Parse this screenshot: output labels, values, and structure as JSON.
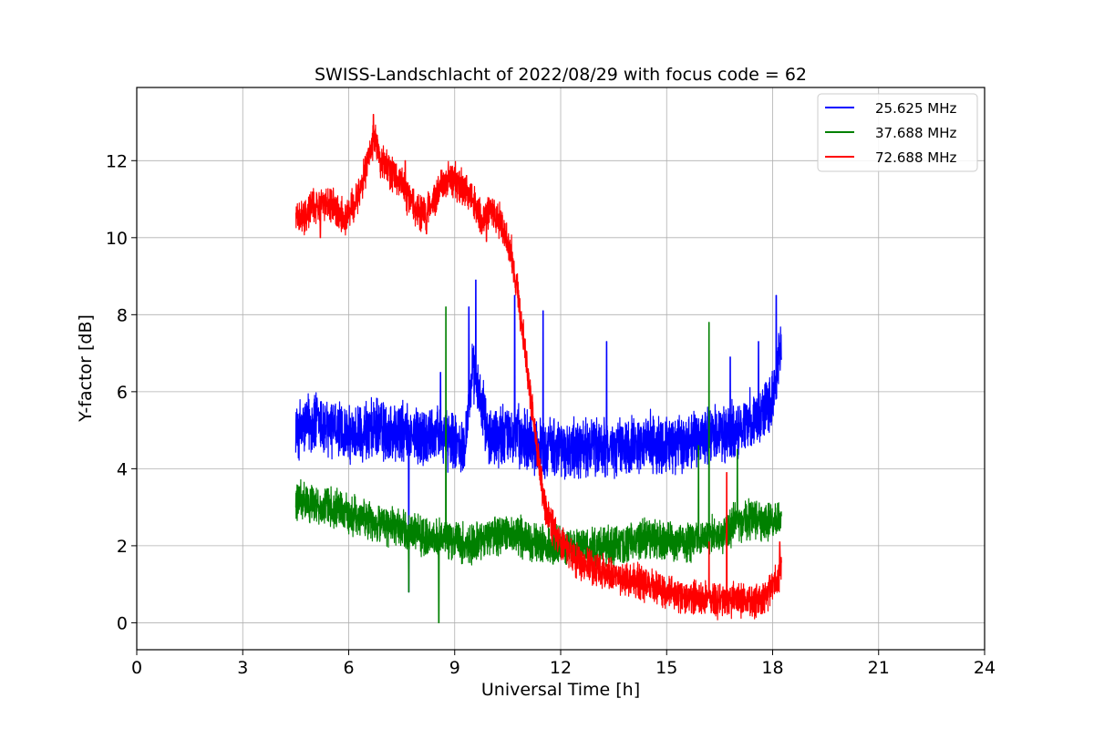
{
  "chart_data": {
    "type": "line",
    "title": "SWISS-Landschlacht of 2022/08/29 with focus code = 62",
    "xlabel": "Universal Time [h]",
    "ylabel": "Y-factor [dB]",
    "xlim": [
      0,
      24
    ],
    "ylim": [
      -0.7,
      13.9
    ],
    "xticks": [
      0,
      3,
      6,
      9,
      12,
      15,
      18,
      21,
      24
    ],
    "yticks": [
      0,
      2,
      4,
      6,
      8,
      10,
      12
    ],
    "grid": true,
    "legend_position": "top-right",
    "series": [
      {
        "name": "25.625 MHz",
        "color": "#0000ff",
        "x": [
          4.5,
          5.0,
          5.5,
          6.0,
          6.5,
          7.0,
          7.5,
          8.0,
          8.5,
          9.0,
          9.3,
          9.5,
          10.0,
          10.5,
          11.0,
          11.5,
          12.0,
          12.5,
          13.0,
          13.5,
          14.0,
          14.5,
          15.0,
          15.5,
          16.0,
          16.5,
          17.0,
          17.5,
          18.0,
          18.25
        ],
        "y": [
          5.0,
          5.2,
          5.0,
          4.8,
          5.0,
          5.0,
          4.9,
          4.8,
          4.9,
          4.7,
          4.8,
          6.5,
          4.8,
          5.0,
          4.8,
          4.6,
          4.5,
          4.5,
          4.6,
          4.5,
          4.6,
          4.7,
          4.6,
          4.7,
          4.8,
          4.9,
          5.0,
          5.3,
          5.8,
          7.2
        ],
        "noise": 0.6,
        "spikes": [
          [
            7.7,
            0.8
          ],
          [
            8.6,
            6.5
          ],
          [
            9.4,
            8.2
          ],
          [
            9.6,
            8.9
          ],
          [
            10.7,
            8.5
          ],
          [
            11.5,
            8.1
          ],
          [
            13.3,
            7.3
          ],
          [
            16.8,
            6.9
          ],
          [
            17.6,
            7.3
          ],
          [
            18.1,
            8.5
          ]
        ]
      },
      {
        "name": "37.688 MHz",
        "color": "#008000",
        "x": [
          4.5,
          5.0,
          5.5,
          6.0,
          6.5,
          7.0,
          7.5,
          8.0,
          8.5,
          9.0,
          9.5,
          10.0,
          10.5,
          11.0,
          11.5,
          12.0,
          12.5,
          13.0,
          13.5,
          14.0,
          14.5,
          15.0,
          15.5,
          16.0,
          16.5,
          17.0,
          17.5,
          18.0,
          18.25
        ],
        "y": [
          3.2,
          3.1,
          3.0,
          2.8,
          2.7,
          2.5,
          2.4,
          2.3,
          2.2,
          2.1,
          2.0,
          2.3,
          2.3,
          2.2,
          2.0,
          2.0,
          1.9,
          2.0,
          2.0,
          2.1,
          2.2,
          2.1,
          2.1,
          2.2,
          2.3,
          2.6,
          2.7,
          2.6,
          2.8
        ],
        "noise": 0.4,
        "spikes": [
          [
            8.55,
            0.0
          ],
          [
            8.75,
            8.2
          ],
          [
            15.9,
            4.6
          ],
          [
            16.2,
            7.8
          ],
          [
            17.0,
            4.5
          ],
          [
            7.7,
            0.8
          ]
        ]
      },
      {
        "name": "72.688 MHz",
        "color": "#ff0000",
        "x": [
          4.5,
          4.8,
          5.0,
          5.3,
          5.6,
          5.9,
          6.1,
          6.3,
          6.5,
          6.7,
          6.9,
          7.1,
          7.4,
          7.7,
          8.0,
          8.3,
          8.6,
          8.9,
          9.2,
          9.5,
          9.8,
          10.0,
          10.3,
          10.6,
          10.8,
          11.0,
          11.2,
          11.4,
          11.6,
          11.9,
          12.2,
          12.5,
          13.0,
          13.5,
          14.0,
          14.5,
          15.0,
          15.5,
          16.0,
          16.5,
          17.0,
          17.5,
          17.8,
          18.0,
          18.25
        ],
        "y": [
          10.5,
          10.6,
          10.8,
          10.9,
          10.8,
          10.5,
          10.8,
          11.2,
          11.8,
          12.6,
          12.0,
          11.8,
          11.5,
          11.0,
          10.6,
          10.8,
          11.3,
          11.6,
          11.3,
          11.0,
          10.4,
          10.7,
          10.4,
          9.6,
          8.5,
          7.0,
          5.5,
          4.0,
          2.8,
          2.2,
          1.9,
          1.6,
          1.4,
          1.2,
          1.1,
          1.0,
          0.8,
          0.7,
          0.6,
          0.6,
          0.6,
          0.5,
          0.7,
          1.0,
          1.4
        ],
        "noise": 0.35,
        "spikes": [
          [
            6.7,
            13.2
          ],
          [
            7.6,
            12.0
          ],
          [
            8.2,
            10.1
          ],
          [
            9.9,
            9.9
          ],
          [
            5.2,
            10.0
          ],
          [
            16.2,
            2.1
          ],
          [
            16.7,
            3.9
          ],
          [
            18.2,
            2.1
          ]
        ]
      }
    ]
  }
}
